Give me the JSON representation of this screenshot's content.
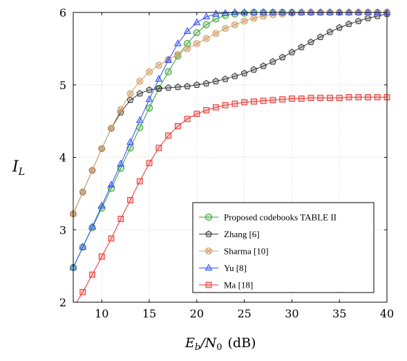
{
  "chart_data": {
    "type": "line",
    "xlabel_main": "E",
    "xlabel_main_sub": "b",
    "xlabel_slash": "/N",
    "xlabel_slash_sub": "0",
    "xlabel_unit": "(dB)",
    "ylabel_main": "I",
    "ylabel_sub": "L",
    "xlim": [
      7,
      40
    ],
    "ylim": [
      2,
      6
    ],
    "xticks": [
      10,
      15,
      20,
      25,
      30,
      35,
      40
    ],
    "yticks": [
      2,
      3,
      4,
      5,
      6
    ],
    "grid": true,
    "legend_position": "bottom-right",
    "x": [
      7,
      8,
      9,
      10,
      11,
      12,
      13,
      14,
      15,
      16,
      17,
      18,
      19,
      20,
      21,
      22,
      23,
      24,
      25,
      26,
      27,
      28,
      29,
      30,
      31,
      32,
      33,
      34,
      35,
      36,
      37,
      38,
      39,
      40
    ],
    "series": [
      {
        "name": "Proposed codebooks TABLE II",
        "color": "#2ca02c",
        "marker": "circle",
        "values": [
          2.48,
          2.76,
          3.03,
          3.3,
          3.57,
          3.85,
          4.13,
          4.41,
          4.68,
          4.95,
          5.18,
          5.4,
          5.57,
          5.72,
          5.83,
          5.91,
          5.96,
          5.98,
          5.99,
          6.0,
          6.0,
          6.0,
          6.0,
          6.0,
          6.0,
          6.0,
          6.0,
          6.0,
          6.0,
          6.0,
          6.0,
          6.0,
          6.0,
          6.0
        ]
      },
      {
        "name": "Zhang [6]",
        "color": "#333333",
        "marker": "pentagon",
        "values": [
          3.22,
          3.52,
          3.82,
          4.12,
          4.4,
          4.62,
          4.79,
          4.88,
          4.93,
          4.95,
          4.96,
          4.97,
          4.98,
          5.0,
          5.02,
          5.05,
          5.08,
          5.12,
          5.16,
          5.21,
          5.26,
          5.32,
          5.38,
          5.45,
          5.52,
          5.59,
          5.66,
          5.73,
          5.79,
          5.84,
          5.88,
          5.92,
          5.95,
          5.98
        ]
      },
      {
        "name": "Sharma [10]",
        "color": "#d2a06a",
        "marker": "circle-cross",
        "values": [
          3.22,
          3.52,
          3.82,
          4.12,
          4.4,
          4.66,
          4.88,
          5.05,
          5.18,
          5.27,
          5.35,
          5.42,
          5.5,
          5.57,
          5.64,
          5.71,
          5.78,
          5.83,
          5.88,
          5.92,
          5.95,
          5.97,
          5.98,
          5.99,
          6.0,
          6.0,
          6.0,
          6.0,
          6.0,
          6.0,
          6.0,
          6.0,
          6.0,
          6.0
        ]
      },
      {
        "name": "Yu [8]",
        "color": "#2f4bff",
        "marker": "triangle",
        "values": [
          2.48,
          2.76,
          3.04,
          3.33,
          3.62,
          3.91,
          4.21,
          4.51,
          4.8,
          5.08,
          5.34,
          5.57,
          5.74,
          5.86,
          5.94,
          5.98,
          5.99,
          6.0,
          6.0,
          6.0,
          6.0,
          6.0,
          6.0,
          6.0,
          6.0,
          6.0,
          6.0,
          6.0,
          6.0,
          6.0,
          6.0,
          6.0,
          6.0,
          6.0
        ]
      },
      {
        "name": "Ma [18]",
        "color": "#e8302a",
        "marker": "square",
        "values": [
          1.92,
          2.14,
          2.38,
          2.63,
          2.88,
          3.15,
          3.41,
          3.67,
          3.92,
          4.13,
          4.3,
          4.43,
          4.53,
          4.6,
          4.65,
          4.69,
          4.72,
          4.74,
          4.76,
          4.77,
          4.78,
          4.79,
          4.8,
          4.81,
          4.81,
          4.82,
          4.82,
          4.82,
          4.82,
          4.83,
          4.83,
          4.83,
          4.83,
          4.83
        ]
      }
    ]
  }
}
